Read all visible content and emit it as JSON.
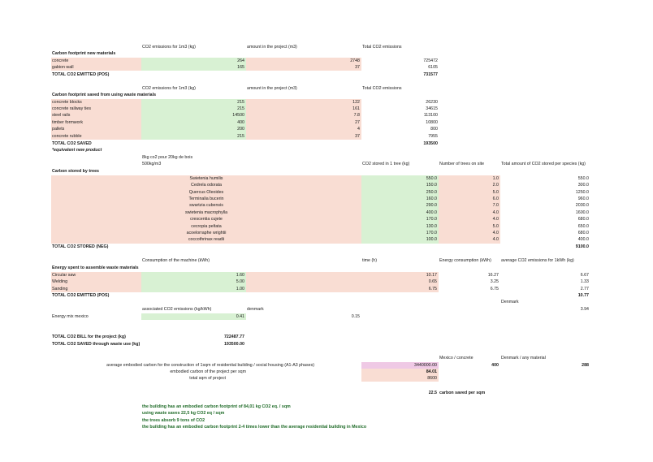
{
  "materials": {
    "hdr_per_m3": "CO2 emissions for 1m3 (kg)",
    "hdr_amount": "amount in the project (m3)",
    "hdr_total": "Total CO2 emissions",
    "title": "Carbon footprint new materials",
    "rows": [
      {
        "name": "concrete",
        "per_m3": "264",
        "amount": "2748",
        "total": "725472"
      },
      {
        "name": "gabion wall",
        "per_m3": "165",
        "amount": "37",
        "total": "6105"
      }
    ],
    "total_label": "TOTAL CO2 EMITTED (POS)",
    "total_value": "731577"
  },
  "waste": {
    "hdr_per_m3": "CO2 emissions for 1m3 (kg)",
    "hdr_amount": "amount in the project (m3)",
    "hdr_total": "Total CO2 emissions",
    "title": "Carbon footprint saved from using waste materials",
    "rows": [
      {
        "name": "concrete blocks",
        "per_m3": "215",
        "amount": "122",
        "total": "26230"
      },
      {
        "name": "concrete railway ties",
        "per_m3": "215",
        "amount": "161",
        "total": "34615"
      },
      {
        "name": "steel rails",
        "per_m3": "14500",
        "amount": "7.8",
        "total": "113100"
      },
      {
        "name": "timber formwork",
        "per_m3": "400",
        "amount": "27",
        "total": "10800"
      },
      {
        "name": "pallets",
        "per_m3": "200",
        "amount": "4",
        "total": "800"
      },
      {
        "name": "concrete rubble",
        "per_m3": "215",
        "amount": "37",
        "total": "7955"
      }
    ],
    "total_label": "TOTAL CO2 SAVED",
    "total_value": "193500",
    "note": "*equivalent new product"
  },
  "trees": {
    "note1": "8kg co2 pour 20kg de bois",
    "note2": "500kg/m3",
    "hdr_stored": "CO2 stored in 1 tree (kg)",
    "hdr_number": "Number of trees on site",
    "hdr_total": "Total amount of CO2 stored per species (kg)",
    "title": "Carbon stored by trees",
    "rows": [
      {
        "name": "Swietenia humilis",
        "stored": "550.0",
        "number": "1.0",
        "total": "550.0"
      },
      {
        "name": "Cedrela odorata",
        "stored": "150.0",
        "number": "2.0",
        "total": "300.0"
      },
      {
        "name": "Quercus Oleoides",
        "stored": "250.0",
        "number": "5.0",
        "total": "1250.0"
      },
      {
        "name": "Terminalia bucerin",
        "stored": "160.0",
        "number": "6.0",
        "total": "960.0"
      },
      {
        "name": "swartzia cubensis",
        "stored": "290.0",
        "number": "7.0",
        "total": "2030.0"
      },
      {
        "name": "swietenia macrophylla",
        "stored": "400.0",
        "number": "4.0",
        "total": "1600.0"
      },
      {
        "name": "crescentia cujete",
        "stored": "170.0",
        "number": "4.0",
        "total": "680.0"
      },
      {
        "name": "cecropia peltata",
        "stored": "130.0",
        "number": "5.0",
        "total": "650.0"
      },
      {
        "name": "acoelorraphe wrightii",
        "stored": "170.0",
        "number": "4.0",
        "total": "680.0"
      },
      {
        "name": "coccothrinax readii",
        "stored": "100.0",
        "number": "4.0",
        "total": "400.0"
      }
    ],
    "total_label": "TOTAL CO2  STORED (NEG)",
    "total_value": "9100.0"
  },
  "energy": {
    "hdr_consumption": "Consumption of the machine (kWh)",
    "hdr_time": "time (h)",
    "hdr_energy": "Energy consumption (kWh)",
    "hdr_avg": "average CO2 emissions for 1kWh (kg)",
    "title": "Energy spent to assemble waste materials",
    "rows": [
      {
        "name": "Circular saw",
        "consumption": "1.60",
        "time": "10.17",
        "energy": "16.27",
        "avg": "6.67"
      },
      {
        "name": "Welding",
        "consumption": "5.00",
        "time": "0.65",
        "energy": "3.25",
        "avg": "1.33"
      },
      {
        "name": "Sanding",
        "consumption": "1.00",
        "time": "6.75",
        "energy": "6.75",
        "avg": "2.77"
      }
    ],
    "total_label": "TOTAL CO2 EMITTED (POS)",
    "total_value": "10.77",
    "denmark_label": "Denmark",
    "denmark_value": "3.94",
    "assoc_label": "associated CO2 emissions (kg/kWh)",
    "denmark_col": "denmark",
    "mix_label": "Energy mix mexico",
    "mix_value": "0.41",
    "mix_denmark": "0.15"
  },
  "summary": {
    "bill_label": "TOTAL CO2 BILL for the project (kg)",
    "bill_value": "722487.77",
    "saved_label": "TOTAL CO2 SAVED through waste use (kg)",
    "saved_value": "193500.00"
  },
  "embodied": {
    "col_mexico": "Mexico / concrete",
    "col_denmark": "Denmark / any material",
    "avg_label": "average embodied carbon for the construction of 1sqm of residential building / social housing (A1-A3 phases)",
    "avg_value": "3440000.00",
    "avg_mexico": "400",
    "avg_denmark": "288",
    "project_label": "embodied carbon of the project per sqm",
    "project_value": "84.01",
    "sqm_label": "total sqm of project",
    "sqm_value": "8600",
    "saved_value": "22.5",
    "saved_label": "carbon saved per sqm"
  },
  "conclusions": [
    "the building has an embodied carbon footprint of 84,01 kg CO2 eq. / sqm",
    "using waste saves 22,5 kg CO2 eq / sqm",
    "the trees absorb 9 tons of CO2",
    "the building has an embodied carbon footprint 2-4 times lower than the average residential building in Mexico"
  ]
}
